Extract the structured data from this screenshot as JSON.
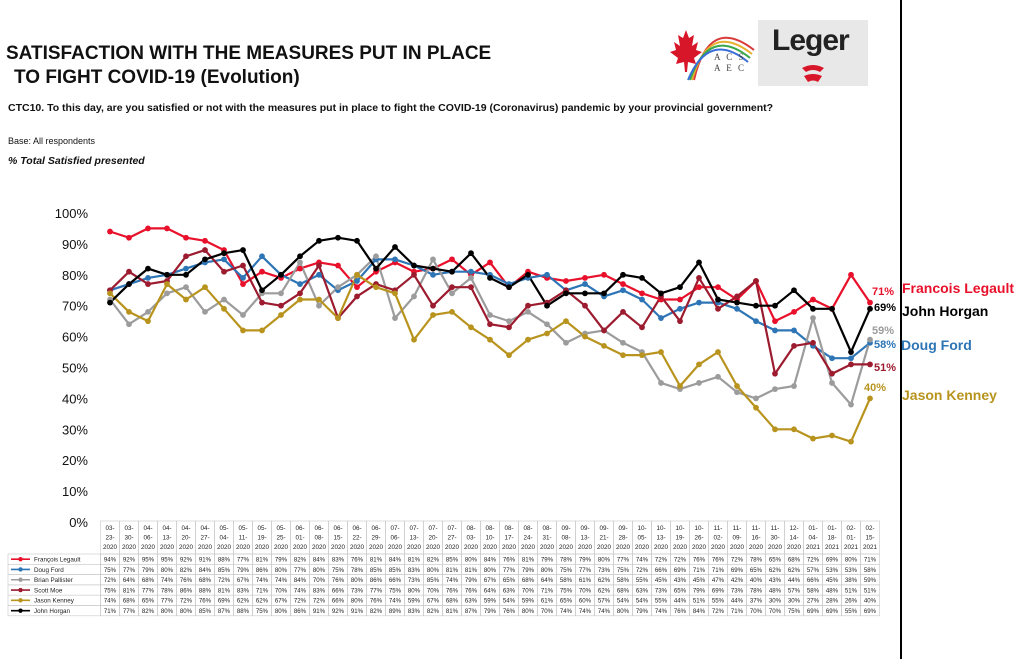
{
  "header": {
    "title_line1": "SATISFACTION WITH THE MEASURES PUT IN PLACE",
    "title_line2": "TO FIGHT COVID-19 (Evolution)",
    "question": "CTC10. To this day, are you satisfied or not with the measures put in place to fight the COVID-19 (Coronavirus) pandemic by your provincial government?",
    "base": "Base: All respondents",
    "subtitle": "% Total Satisfied presented"
  },
  "logos": {
    "acs_line1": "A C S",
    "acs_line2": "A E C",
    "leger": "Leger"
  },
  "end_labels": [
    {
      "name": "Francois Legault",
      "value": "71%"
    },
    {
      "name": "John Horgan",
      "value": "69%"
    },
    {
      "name": "Doug Ford",
      "value": "58%"
    },
    {
      "name": "Jason Kenney",
      "value": "40%"
    },
    {
      "value": "59%"
    },
    {
      "value": "51%"
    }
  ],
  "chart_data": {
    "type": "line",
    "ylim": [
      0,
      100
    ],
    "y_ticks": [
      "0%",
      "10%",
      "20%",
      "30%",
      "40%",
      "50%",
      "60%",
      "70%",
      "80%",
      "90%",
      "100%"
    ],
    "categories": [
      [
        "03-",
        "23-",
        "2020"
      ],
      [
        "03-",
        "30-",
        "2020"
      ],
      [
        "04-",
        "06-",
        "2020"
      ],
      [
        "04-",
        "13-",
        "2020"
      ],
      [
        "04-",
        "20-",
        "2020"
      ],
      [
        "04-",
        "27-",
        "2020"
      ],
      [
        "05-",
        "04-",
        "2020"
      ],
      [
        "05-",
        "11-",
        "2020"
      ],
      [
        "05-",
        "19-",
        "2020"
      ],
      [
        "05-",
        "25-",
        "2020"
      ],
      [
        "06-",
        "01-",
        "2020"
      ],
      [
        "06-",
        "08-",
        "2020"
      ],
      [
        "06-",
        "15-",
        "2020"
      ],
      [
        "06-",
        "22-",
        "2020"
      ],
      [
        "06-",
        "29-",
        "2020"
      ],
      [
        "07-",
        "06-",
        "2020"
      ],
      [
        "07-",
        "13-",
        "2020"
      ],
      [
        "07-",
        "20-",
        "2020"
      ],
      [
        "07-",
        "27-",
        "2020"
      ],
      [
        "08-",
        "03-",
        "2020"
      ],
      [
        "08-",
        "10-",
        "2020"
      ],
      [
        "08-",
        "17-",
        "2020"
      ],
      [
        "08-",
        "24-",
        "2020"
      ],
      [
        "08-",
        "31-",
        "2020"
      ],
      [
        "09-",
        "08-",
        "2020"
      ],
      [
        "09-",
        "13-",
        "2020"
      ],
      [
        "09-",
        "21-",
        "2020"
      ],
      [
        "09-",
        "28-",
        "2020"
      ],
      [
        "10-",
        "05-",
        "2020"
      ],
      [
        "10-",
        "13-",
        "2020"
      ],
      [
        "10-",
        "19-",
        "2020"
      ],
      [
        "10-",
        "26-",
        "2020"
      ],
      [
        "11-",
        "02-",
        "2020"
      ],
      [
        "11-",
        "09-",
        "2020"
      ],
      [
        "11-",
        "16-",
        "2020"
      ],
      [
        "11-",
        "30-",
        "2020"
      ],
      [
        "12-",
        "14-",
        "2020"
      ],
      [
        "01-",
        "04-",
        "2021"
      ],
      [
        "01-",
        "18-",
        "2021"
      ],
      [
        "02-",
        "01-",
        "2021"
      ],
      [
        "02-",
        "15-",
        "2021"
      ]
    ],
    "series": [
      {
        "name": "François Legault",
        "color": "#e8102a",
        "values": [
          94,
          92,
          95,
          95,
          92,
          91,
          88,
          77,
          81,
          79,
          82,
          84,
          83,
          76,
          81,
          84,
          81,
          82,
          85,
          80,
          84,
          76,
          81,
          79,
          78,
          79,
          80,
          77,
          74,
          72,
          72,
          76,
          76,
          72,
          78,
          65,
          68,
          72,
          69,
          80,
          71
        ]
      },
      {
        "name": "Doug Ford",
        "color": "#2e75b6",
        "values": [
          75,
          77,
          79,
          80,
          82,
          84,
          85,
          79,
          86,
          80,
          77,
          80,
          75,
          78,
          85,
          85,
          83,
          80,
          81,
          81,
          80,
          77,
          79,
          80,
          75,
          77,
          73,
          75,
          72,
          66,
          69,
          71,
          71,
          69,
          65,
          62,
          62,
          57,
          53,
          53,
          58
        ]
      },
      {
        "name": "Brian Pallister",
        "color": "#9c9c9c",
        "values": [
          72,
          64,
          68,
          74,
          76,
          68,
          72,
          67,
          74,
          74,
          84,
          70,
          76,
          80,
          86,
          66,
          73,
          85,
          74,
          79,
          67,
          65,
          68,
          64,
          58,
          61,
          62,
          58,
          55,
          45,
          43,
          45,
          47,
          42,
          40,
          43,
          44,
          66,
          45,
          38,
          59
        ]
      },
      {
        "name": "Scott Moe",
        "color": "#9c1b2f",
        "values": [
          75,
          81,
          77,
          78,
          86,
          88,
          81,
          83,
          71,
          70,
          74,
          83,
          66,
          73,
          77,
          75,
          80,
          70,
          76,
          76,
          64,
          63,
          70,
          71,
          75,
          70,
          62,
          68,
          63,
          73,
          65,
          79,
          69,
          73,
          78,
          48,
          57,
          58,
          48,
          51,
          51
        ]
      },
      {
        "name": "Jason Kenney",
        "color": "#b8941e",
        "values": [
          74,
          68,
          65,
          77,
          72,
          76,
          69,
          62,
          62,
          67,
          72,
          72,
          66,
          80,
          76,
          74,
          59,
          67,
          68,
          63,
          59,
          54,
          59,
          61,
          65,
          60,
          57,
          54,
          54,
          55,
          44,
          51,
          55,
          44,
          37,
          30,
          30,
          27,
          28,
          26,
          40
        ]
      },
      {
        "name": "John Horgan",
        "color": "#000000",
        "values": [
          71,
          77,
          82,
          80,
          80,
          85,
          87,
          88,
          75,
          80,
          86,
          91,
          92,
          91,
          82,
          89,
          83,
          82,
          81,
          87,
          79,
          76,
          80,
          70,
          74,
          74,
          74,
          80,
          79,
          74,
          76,
          84,
          72,
          71,
          70,
          70,
          75,
          69,
          69,
          55,
          69
        ]
      }
    ]
  }
}
